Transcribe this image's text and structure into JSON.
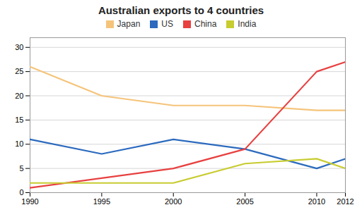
{
  "chart_data": {
    "type": "line",
    "title": "Australian exports to 4 countries",
    "x": [
      1990,
      1995,
      2000,
      2005,
      2010,
      2012
    ],
    "series": [
      {
        "name": "Japan",
        "color": "#f5c47a",
        "values": [
          26,
          20,
          18,
          18,
          17,
          17
        ]
      },
      {
        "name": "US",
        "color": "#2b6abe",
        "values": [
          11,
          8,
          11,
          9,
          5,
          7
        ]
      },
      {
        "name": "China",
        "color": "#e84040",
        "values": [
          1,
          3,
          5,
          9,
          25,
          27
        ]
      },
      {
        "name": "India",
        "color": "#c8cc30",
        "values": [
          2,
          2,
          2,
          6,
          7,
          5
        ]
      }
    ],
    "xlim": [
      1990,
      2012
    ],
    "xticks": [
      1990,
      1995,
      2000,
      2005,
      2010,
      2012
    ],
    "ylim": [
      0,
      32
    ],
    "yticks": [
      0,
      5,
      10,
      15,
      20,
      25,
      30
    ],
    "grid": true,
    "legend": "top"
  }
}
